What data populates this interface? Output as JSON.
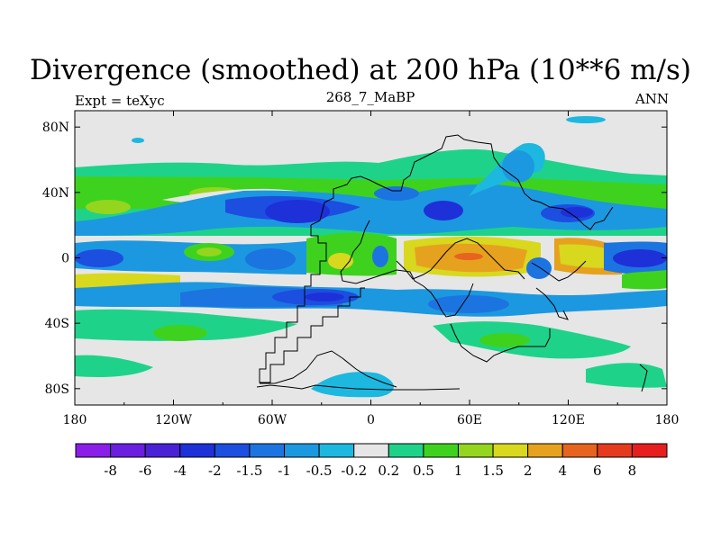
{
  "figure": {
    "title": "Divergence (smoothed) at 200 hPa (10**6 m/s)",
    "left_label": "Expt = teXyc",
    "center_label": "268_7_MaBP",
    "right_label": "ANN"
  },
  "axes": {
    "x_ticks": [
      "180",
      "120W",
      "60W",
      "0",
      "60E",
      "120E",
      "180"
    ],
    "y_ticks": [
      "80N",
      "40N",
      "0",
      "40S",
      "80S"
    ]
  },
  "colorbar": {
    "labels": [
      "-8",
      "-6",
      "-4",
      "-2",
      "-1.5",
      "-1",
      "-0.5",
      "-0.2",
      "0.2",
      "0.5",
      "1",
      "1.5",
      "2",
      "4",
      "6",
      "8"
    ],
    "colors": [
      "#8a1ee8",
      "#6a1ee0",
      "#4a22d6",
      "#1e30d8",
      "#1c4ee0",
      "#1c74e0",
      "#1c98e0",
      "#1cb8e0",
      "#e6e6e6",
      "#1fd28a",
      "#3ed21e",
      "#94d51e",
      "#d8d81e",
      "#e6a21e",
      "#e6641e",
      "#e63a1e",
      "#e61e1e"
    ]
  },
  "colors": {
    "background_field": "#e6e6e6",
    "coastline": "#000000"
  }
}
